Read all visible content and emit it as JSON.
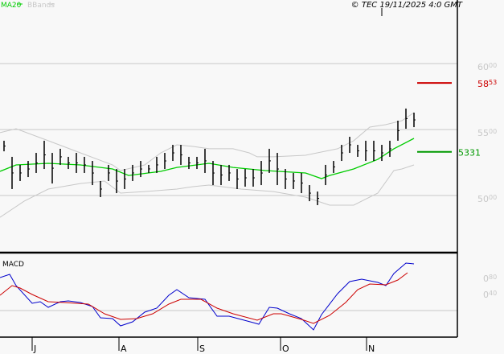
{
  "legend": {
    "ma_label": "MA20",
    "bb_label": "BBands",
    "ma_color": "#00cc00",
    "bb_color": "#c8c8c8"
  },
  "copyright": "© TEC 19/11/2025 4:0 GMT",
  "macd_label": "MACD",
  "colors": {
    "bars": "#000000",
    "resistance": "#cc0000",
    "support": "#009900",
    "macd": "#0000cc",
    "signal": "#cc0000",
    "grid": "#c8c8c8"
  },
  "chart_data": [
    {
      "type": "ohlc",
      "x_unit": "session",
      "yticks": [
        {
          "main": "60",
          "sup": "00",
          "value": 6000
        },
        {
          "main": "55",
          "sup": "00",
          "value": 5500
        },
        {
          "main": "50",
          "sup": "00",
          "value": 5000
        }
      ],
      "ylim": [
        4700,
        6300
      ],
      "grid": true,
      "xticks": [
        {
          "label": "J",
          "x": 8
        },
        {
          "label": "A",
          "x": 29.6
        },
        {
          "label": "S",
          "x": 49.2
        },
        {
          "label": "O",
          "x": 69.8
        },
        {
          "label": "N",
          "x": 91.2
        }
      ],
      "levels": [
        {
          "name": "resistance",
          "value": 5853,
          "main": "58",
          "sup": "53",
          "color": "#cc0000"
        },
        {
          "name": "support",
          "value": 5331,
          "main": "5331",
          "sup": "",
          "color": "#009900"
        }
      ],
      "bars": [
        [
          1,
          5415,
          5335
        ],
        [
          3,
          5293,
          5049
        ],
        [
          5,
          5232,
          5110
        ],
        [
          7,
          5262,
          5140
        ],
        [
          9,
          5323,
          5171
        ],
        [
          11,
          5415,
          5201
        ],
        [
          13,
          5323,
          5091
        ],
        [
          15,
          5354,
          5232
        ],
        [
          17,
          5293,
          5201
        ],
        [
          19,
          5323,
          5171
        ],
        [
          21,
          5293,
          5171
        ],
        [
          23,
          5262,
          5079
        ],
        [
          25,
          5110,
          4988
        ],
        [
          27,
          5232,
          5110
        ],
        [
          29,
          5201,
          5018
        ],
        [
          31,
          5201,
          5049
        ],
        [
          33,
          5232,
          5110
        ],
        [
          35,
          5262,
          5140
        ],
        [
          37,
          5232,
          5171
        ],
        [
          39,
          5293,
          5171
        ],
        [
          41,
          5323,
          5201
        ],
        [
          43,
          5384,
          5262
        ],
        [
          45,
          5384,
          5232
        ],
        [
          47,
          5293,
          5201
        ],
        [
          49,
          5293,
          5201
        ],
        [
          51,
          5354,
          5171
        ],
        [
          53,
          5262,
          5079
        ],
        [
          55,
          5232,
          5079
        ],
        [
          57,
          5232,
          5110
        ],
        [
          59,
          5201,
          5049
        ],
        [
          61,
          5201,
          5067
        ],
        [
          63,
          5201,
          5067
        ],
        [
          65,
          5262,
          5079
        ],
        [
          67,
          5354,
          5171
        ],
        [
          69,
          5323,
          5079
        ],
        [
          71,
          5201,
          5049
        ],
        [
          73,
          5171,
          5049
        ],
        [
          75,
          5171,
          5018
        ],
        [
          77,
          5079,
          4957
        ],
        [
          79,
          5030,
          4927
        ],
        [
          81,
          5232,
          5079
        ],
        [
          83,
          5262,
          5171
        ],
        [
          85,
          5384,
          5262
        ],
        [
          87,
          5445,
          5323
        ],
        [
          89,
          5384,
          5293
        ],
        [
          91,
          5415,
          5262
        ],
        [
          93,
          5415,
          5262
        ],
        [
          95,
          5384,
          5262
        ],
        [
          97,
          5415,
          5293
        ],
        [
          99,
          5567,
          5415
        ],
        [
          101,
          5659,
          5506
        ],
        [
          103,
          5628,
          5518
        ]
      ],
      "ma20": [
        [
          0,
          5183
        ],
        [
          4,
          5232
        ],
        [
          12,
          5244
        ],
        [
          20,
          5232
        ],
        [
          28,
          5201
        ],
        [
          32,
          5152
        ],
        [
          40,
          5183
        ],
        [
          44,
          5213
        ],
        [
          52,
          5244
        ],
        [
          58,
          5213
        ],
        [
          66,
          5189
        ],
        [
          76,
          5171
        ],
        [
          80,
          5128
        ],
        [
          82,
          5152
        ],
        [
          88,
          5201
        ],
        [
          94,
          5274
        ],
        [
          98,
          5354
        ],
        [
          103,
          5433
        ]
      ],
      "bb_upper": [
        [
          0,
          5476
        ],
        [
          4,
          5506
        ],
        [
          12,
          5415
        ],
        [
          20,
          5323
        ],
        [
          28,
          5232
        ],
        [
          30,
          5189
        ],
        [
          36,
          5232
        ],
        [
          40,
          5323
        ],
        [
          44,
          5384
        ],
        [
          48,
          5372
        ],
        [
          52,
          5354
        ],
        [
          58,
          5354
        ],
        [
          62,
          5323
        ],
        [
          64,
          5293
        ],
        [
          68,
          5293
        ],
        [
          76,
          5305
        ],
        [
          84,
          5354
        ],
        [
          88,
          5415
        ],
        [
          92,
          5518
        ],
        [
          96,
          5537
        ],
        [
          100,
          5567
        ],
        [
          103,
          5628
        ]
      ],
      "bb_lower": [
        [
          0,
          4835
        ],
        [
          6,
          4957
        ],
        [
          12,
          5049
        ],
        [
          20,
          5091
        ],
        [
          26,
          5110
        ],
        [
          30,
          5018
        ],
        [
          36,
          5030
        ],
        [
          44,
          5049
        ],
        [
          48,
          5067
        ],
        [
          52,
          5079
        ],
        [
          60,
          5049
        ],
        [
          68,
          5030
        ],
        [
          76,
          4988
        ],
        [
          82,
          4927
        ],
        [
          88,
          4927
        ],
        [
          94,
          5018
        ],
        [
          98,
          5189
        ],
        [
          100,
          5201
        ],
        [
          103,
          5232
        ]
      ]
    },
    {
      "type": "line",
      "title": "MACD",
      "yticks": [
        {
          "main": "0",
          "sup": "80",
          "value": 0.8
        },
        {
          "main": "0",
          "sup": "40",
          "value": 0.4
        }
      ],
      "zero_line": 0,
      "macd": [
        [
          0,
          0.82
        ],
        [
          2.4,
          0.9
        ],
        [
          4,
          0.62
        ],
        [
          8,
          0.18
        ],
        [
          10,
          0.22
        ],
        [
          12,
          0.08
        ],
        [
          15,
          0.22
        ],
        [
          17,
          0.24
        ],
        [
          20,
          0.2
        ],
        [
          23,
          0.1
        ],
        [
          25,
          -0.18
        ],
        [
          28,
          -0.2
        ],
        [
          30,
          -0.38
        ],
        [
          33,
          -0.28
        ],
        [
          36,
          -0.04
        ],
        [
          39,
          0.06
        ],
        [
          42,
          0.38
        ],
        [
          44,
          0.52
        ],
        [
          47,
          0.32
        ],
        [
          51,
          0.28
        ],
        [
          54,
          -0.14
        ],
        [
          57,
          -0.14
        ],
        [
          60,
          -0.22
        ],
        [
          63,
          -0.3
        ],
        [
          64.4,
          -0.34
        ],
        [
          67,
          0.08
        ],
        [
          69,
          0.06
        ],
        [
          72,
          -0.08
        ],
        [
          75,
          -0.2
        ],
        [
          78,
          -0.48
        ],
        [
          80,
          -0.1
        ],
        [
          84,
          0.42
        ],
        [
          87,
          0.72
        ],
        [
          90,
          0.78
        ],
        [
          94,
          0.7
        ],
        [
          96,
          0.62
        ],
        [
          98,
          0.92
        ],
        [
          101,
          1.18
        ],
        [
          103,
          1.16
        ]
      ],
      "signal": [
        [
          0,
          0.38
        ],
        [
          3,
          0.62
        ],
        [
          5,
          0.56
        ],
        [
          8,
          0.4
        ],
        [
          12,
          0.22
        ],
        [
          16,
          0.2
        ],
        [
          22,
          0.16
        ],
        [
          26,
          -0.08
        ],
        [
          30,
          -0.22
        ],
        [
          34,
          -0.2
        ],
        [
          38,
          -0.08
        ],
        [
          42,
          0.16
        ],
        [
          45,
          0.28
        ],
        [
          50,
          0.28
        ],
        [
          54,
          0.06
        ],
        [
          58,
          -0.08
        ],
        [
          64,
          -0.24
        ],
        [
          68,
          -0.08
        ],
        [
          70,
          -0.08
        ],
        [
          75,
          -0.22
        ],
        [
          78,
          -0.32
        ],
        [
          82,
          -0.12
        ],
        [
          86,
          0.2
        ],
        [
          89,
          0.52
        ],
        [
          92,
          0.66
        ],
        [
          96,
          0.64
        ],
        [
          99,
          0.76
        ],
        [
          101.4,
          0.94
        ]
      ]
    }
  ]
}
